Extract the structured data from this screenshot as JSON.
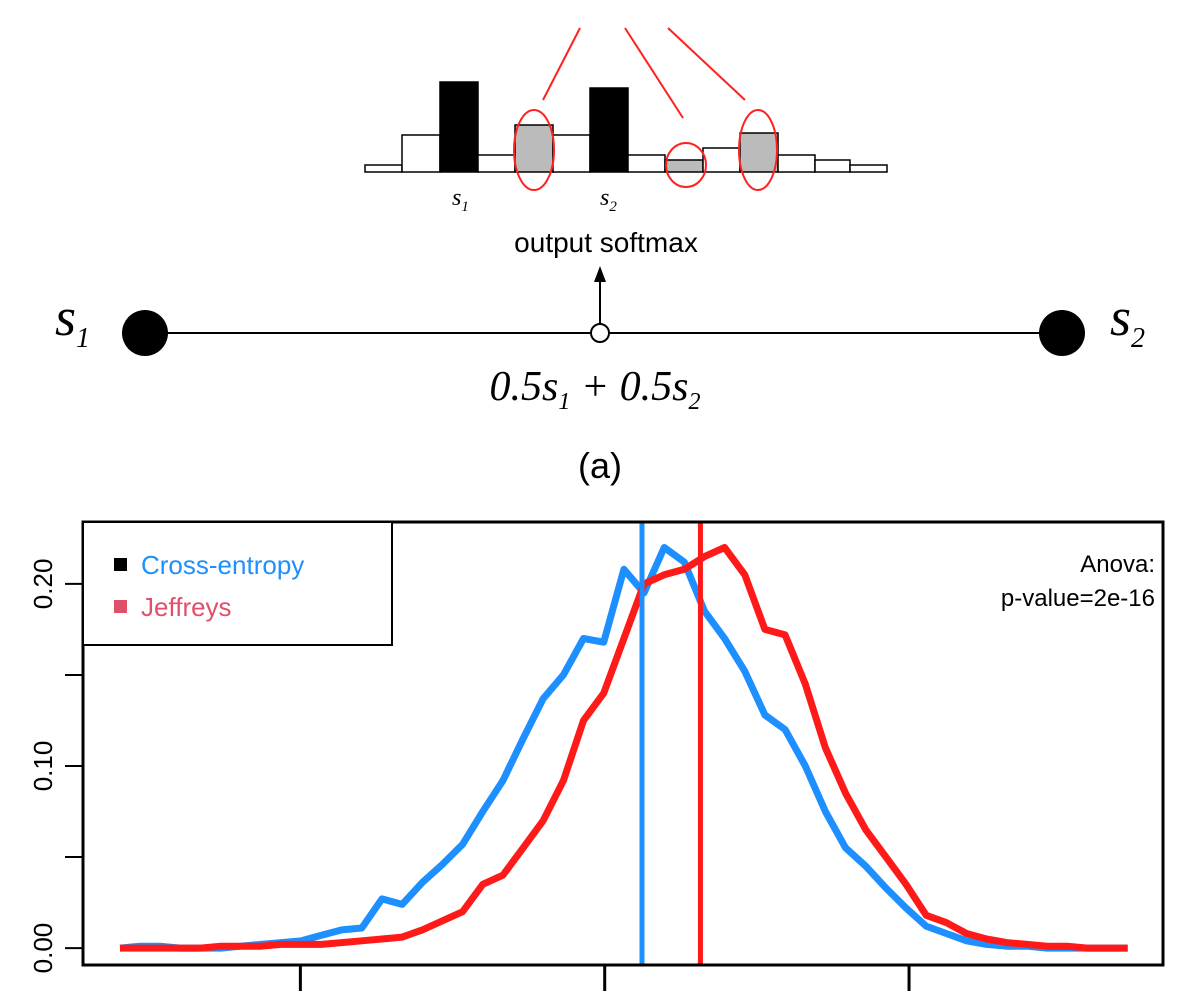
{
  "figure_a": {
    "bar_labels": [
      {
        "text": "s",
        "subscript": "1"
      },
      {
        "text": "s",
        "subscript": "2"
      }
    ],
    "arrow_label": "output softmax",
    "left_point": {
      "text": "s",
      "subscript": "1"
    },
    "right_point": {
      "text": "s",
      "subscript": "2"
    },
    "midpoint_label": [
      {
        "text": "0.5s",
        "subscript": "1"
      },
      {
        "text": " + 0.5s",
        "subscript": "2"
      }
    ],
    "caption": "(a)"
  },
  "chart_data": {
    "type": "line",
    "x": [
      0,
      2,
      4,
      6,
      8,
      10,
      12,
      14,
      16,
      18,
      20,
      22,
      24,
      26,
      28,
      30,
      32,
      34,
      36,
      38,
      40,
      42,
      44,
      46,
      48,
      50,
      52,
      54,
      56,
      58,
      60,
      62,
      64,
      66,
      68,
      70,
      72,
      74,
      76,
      78,
      80,
      82,
      84,
      86,
      88,
      90,
      92,
      94,
      96,
      98,
      100
    ],
    "series": [
      {
        "name": "Cross-entropy",
        "color": "#1e8fff",
        "label_color": "#1e8fff",
        "marker_color": "#000000",
        "values": [
          0.0,
          0.001,
          0.001,
          0.0,
          0.0,
          0.0,
          0.001,
          0.002,
          0.003,
          0.004,
          0.007,
          0.01,
          0.011,
          0.027,
          0.024,
          0.036,
          0.046,
          0.057,
          0.075,
          0.092,
          0.115,
          0.137,
          0.15,
          0.17,
          0.168,
          0.208,
          0.195,
          0.22,
          0.212,
          0.185,
          0.17,
          0.152,
          0.128,
          0.12,
          0.1,
          0.075,
          0.055,
          0.045,
          0.033,
          0.022,
          0.012,
          0.008,
          0.004,
          0.002,
          0.001,
          0.001,
          0.0,
          0.0,
          0.0,
          0.0,
          0.0
        ],
        "mean_line": 51.8
      },
      {
        "name": "Jeffreys",
        "color": "#ff1a1a",
        "label_color": "#e0506a",
        "marker_color": "#e0506a",
        "values": [
          0.0,
          0.0,
          0.0,
          0.0,
          0.0,
          0.001,
          0.001,
          0.001,
          0.002,
          0.002,
          0.002,
          0.003,
          0.004,
          0.005,
          0.006,
          0.01,
          0.015,
          0.02,
          0.035,
          0.04,
          0.055,
          0.07,
          0.092,
          0.125,
          0.14,
          0.17,
          0.2,
          0.205,
          0.208,
          0.215,
          0.22,
          0.205,
          0.175,
          0.172,
          0.145,
          0.11,
          0.085,
          0.065,
          0.05,
          0.035,
          0.018,
          0.014,
          0.008,
          0.005,
          0.003,
          0.002,
          0.001,
          0.001,
          0.0,
          0.0,
          0.0
        ],
        "mean_line": 57.6
      }
    ],
    "xlim": [
      -3.67,
      103.5
    ],
    "xticks": [
      {
        "value": 17.9
      },
      {
        "value": 48.1
      },
      {
        "value": 78.3
      }
    ],
    "ylim": [
      -0.0093,
      0.234
    ],
    "yticks": [
      {
        "value": 0,
        "label": "0.00"
      },
      {
        "value": 0.05
      },
      {
        "value": 0.1,
        "label": "0.10"
      },
      {
        "value": 0.15
      },
      {
        "value": 0.2,
        "label": "0.20"
      }
    ],
    "annotation": [
      "Anova:",
      "p-value=2e-16"
    ],
    "legend": "top-left"
  }
}
